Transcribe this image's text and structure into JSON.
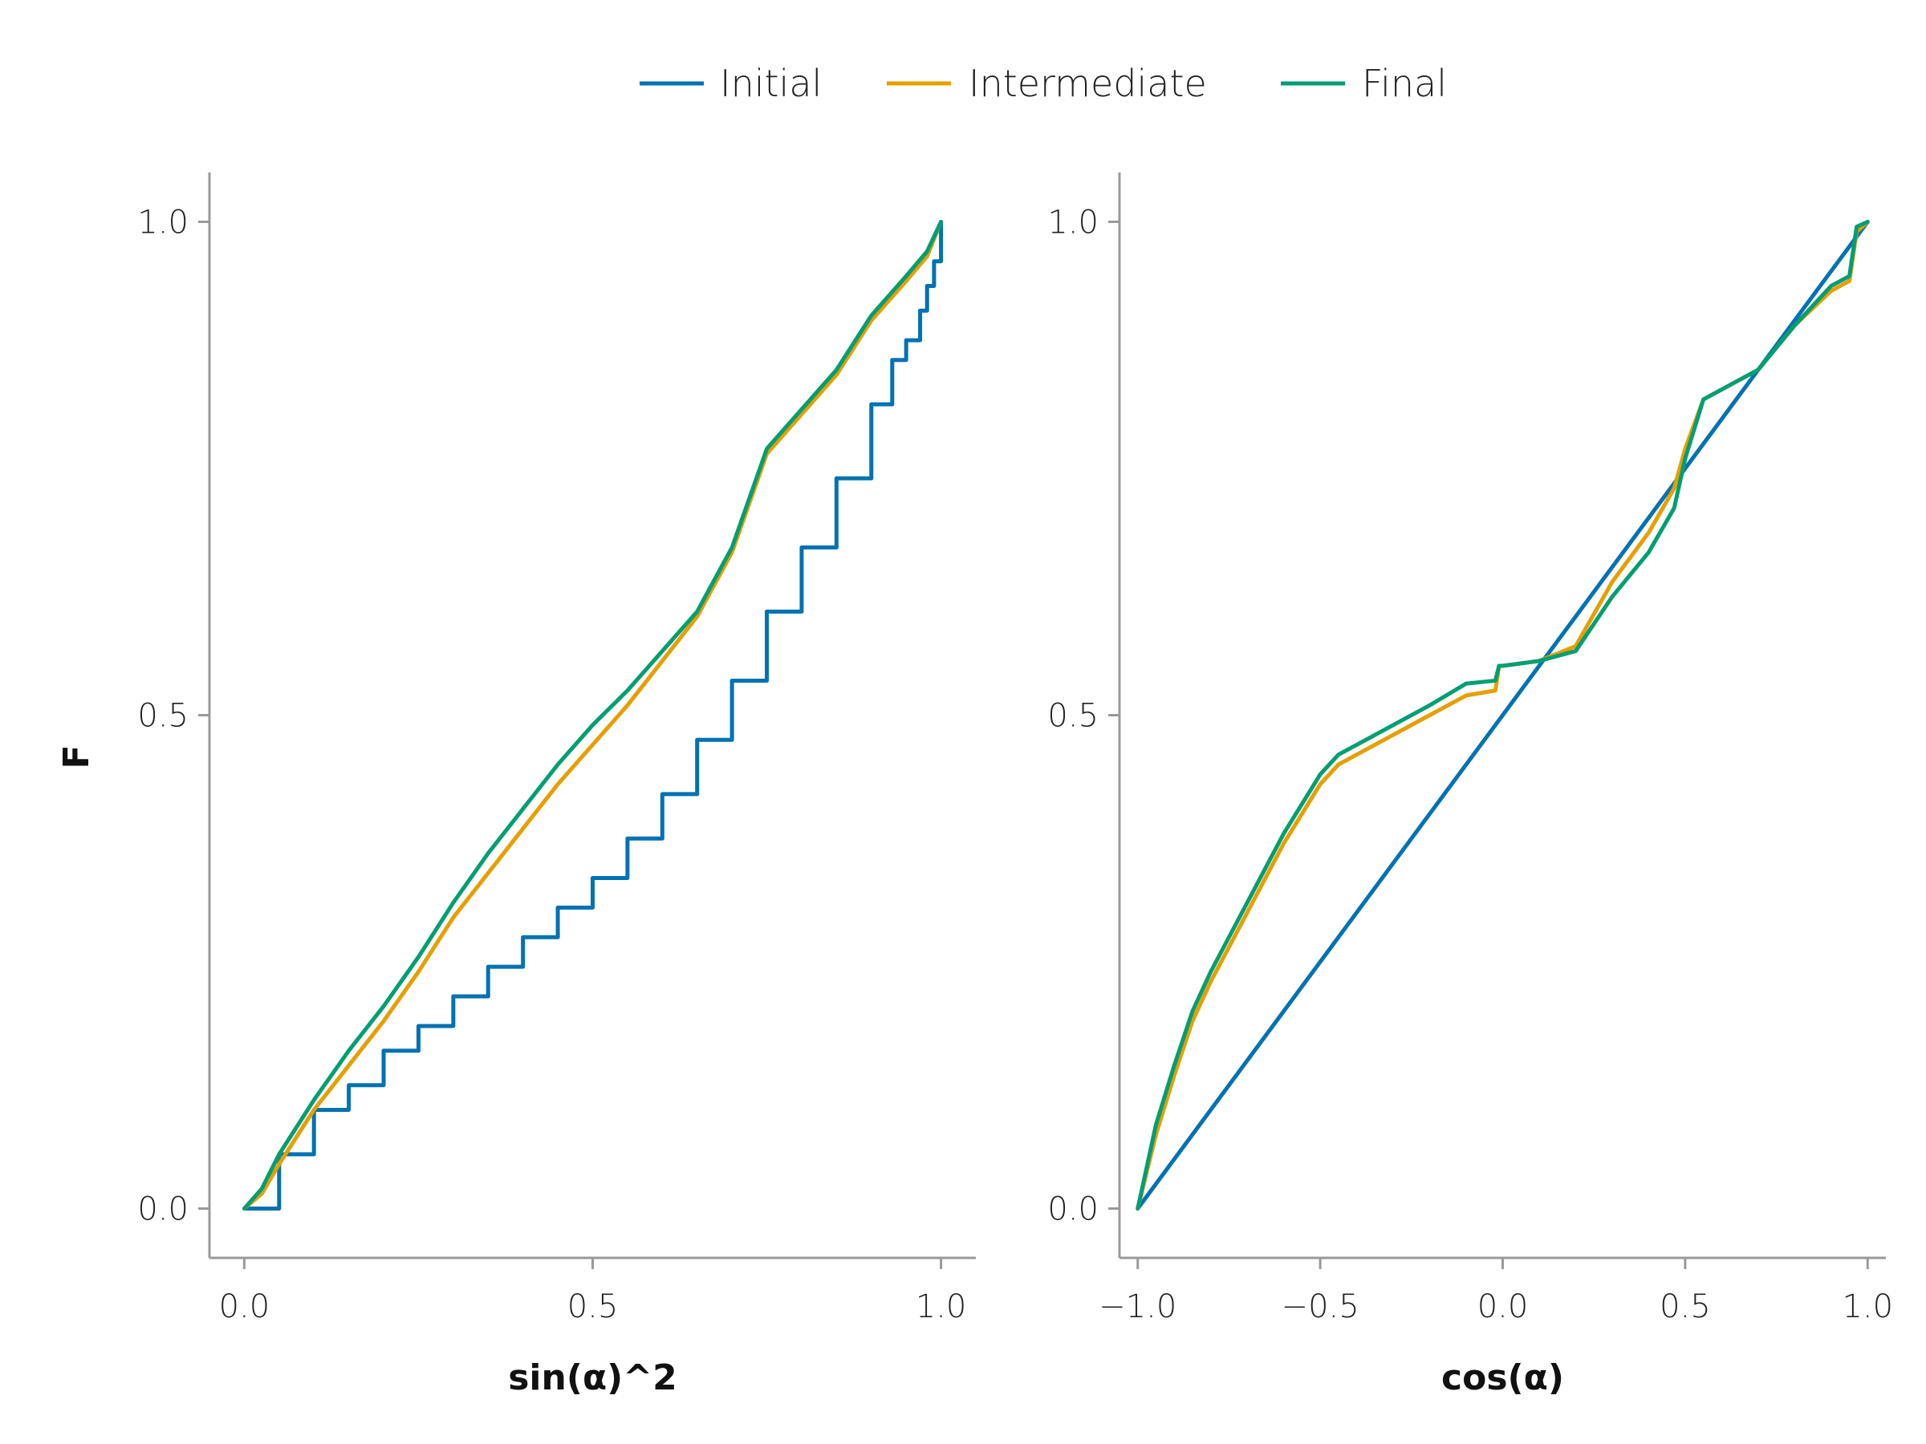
{
  "legend": {
    "items": [
      {
        "label": "Initial",
        "color": "#0072B2"
      },
      {
        "label": "Intermediate",
        "color": "#E69F00"
      },
      {
        "label": "Final",
        "color": "#009E73"
      }
    ]
  },
  "chart_data": [
    {
      "type": "line",
      "xlabel": "sin(α)^2",
      "ylabel": "F",
      "xlim": [
        -0.05,
        1.05
      ],
      "ylim": [
        -0.05,
        1.05
      ],
      "xticks": [
        {
          "value": 0.0,
          "label": "0.0"
        },
        {
          "value": 0.5,
          "label": "0.5"
        },
        {
          "value": 1.0,
          "label": "1.0"
        }
      ],
      "yticks": [
        {
          "value": 0.0,
          "label": "0.0"
        },
        {
          "value": 0.5,
          "label": "0.5"
        },
        {
          "value": 1.0,
          "label": "1.0"
        }
      ],
      "grid": false,
      "series": [
        {
          "name": "Initial",
          "color": "#0072B2",
          "step": true,
          "x": [
            0.0,
            0.05,
            0.1,
            0.15,
            0.2,
            0.25,
            0.3,
            0.35,
            0.4,
            0.45,
            0.5,
            0.55,
            0.6,
            0.65,
            0.7,
            0.75,
            0.8,
            0.85,
            0.9,
            0.93,
            0.95,
            0.97,
            0.98,
            0.99,
            1.0
          ],
          "y": [
            0.0,
            0.055,
            0.1,
            0.125,
            0.16,
            0.185,
            0.215,
            0.245,
            0.275,
            0.305,
            0.335,
            0.375,
            0.42,
            0.475,
            0.535,
            0.605,
            0.67,
            0.74,
            0.815,
            0.86,
            0.88,
            0.91,
            0.935,
            0.96,
            1.0
          ]
        },
        {
          "name": "Intermediate",
          "color": "#E69F00",
          "x": [
            0.0,
            0.025,
            0.05,
            0.1,
            0.15,
            0.2,
            0.25,
            0.3,
            0.35,
            0.4,
            0.45,
            0.5,
            0.55,
            0.6,
            0.65,
            0.7,
            0.75,
            0.8,
            0.85,
            0.9,
            0.95,
            0.98,
            1.0
          ],
          "y": [
            0.0,
            0.015,
            0.045,
            0.1,
            0.145,
            0.19,
            0.24,
            0.295,
            0.34,
            0.385,
            0.43,
            0.47,
            0.51,
            0.555,
            0.6,
            0.665,
            0.765,
            0.805,
            0.845,
            0.9,
            0.94,
            0.965,
            1.0
          ]
        },
        {
          "name": "Final",
          "color": "#009E73",
          "x": [
            0.0,
            0.025,
            0.05,
            0.1,
            0.15,
            0.2,
            0.25,
            0.3,
            0.35,
            0.4,
            0.45,
            0.5,
            0.55,
            0.6,
            0.65,
            0.7,
            0.75,
            0.8,
            0.85,
            0.9,
            0.95,
            0.98,
            1.0
          ],
          "y": [
            0.0,
            0.02,
            0.055,
            0.11,
            0.16,
            0.205,
            0.255,
            0.31,
            0.36,
            0.405,
            0.45,
            0.49,
            0.525,
            0.565,
            0.605,
            0.67,
            0.77,
            0.81,
            0.85,
            0.905,
            0.945,
            0.97,
            1.0
          ]
        }
      ]
    },
    {
      "type": "line",
      "xlabel": "cos(α)",
      "ylabel": "",
      "xlim": [
        -1.05,
        1.05
      ],
      "ylim": [
        -0.05,
        1.05
      ],
      "xticks": [
        {
          "value": -1.0,
          "label": "−1.0"
        },
        {
          "value": -0.5,
          "label": "−0.5"
        },
        {
          "value": 0.0,
          "label": "0.0"
        },
        {
          "value": 0.5,
          "label": "0.5"
        },
        {
          "value": 1.0,
          "label": "1.0"
        }
      ],
      "yticks": [
        {
          "value": 0.0,
          "label": "0.0"
        },
        {
          "value": 0.5,
          "label": "0.5"
        },
        {
          "value": 1.0,
          "label": "1.0"
        }
      ],
      "grid": false,
      "series": [
        {
          "name": "Initial",
          "color": "#0072B2",
          "x": [
            -1.0,
            1.0
          ],
          "y": [
            0.0,
            1.0
          ]
        },
        {
          "name": "Intermediate",
          "color": "#E69F00",
          "x": [
            -1.0,
            -0.95,
            -0.9,
            -0.85,
            -0.8,
            -0.7,
            -0.6,
            -0.5,
            -0.45,
            -0.4,
            -0.3,
            -0.2,
            -0.1,
            -0.02,
            -0.01,
            0.0,
            0.1,
            0.2,
            0.3,
            0.4,
            0.47,
            0.5,
            0.55,
            0.6,
            0.7,
            0.8,
            0.9,
            0.95,
            0.97,
            1.0
          ],
          "y": [
            0.0,
            0.075,
            0.135,
            0.19,
            0.23,
            0.3,
            0.37,
            0.43,
            0.45,
            0.46,
            0.48,
            0.5,
            0.52,
            0.525,
            0.55,
            0.55,
            0.555,
            0.57,
            0.635,
            0.685,
            0.73,
            0.77,
            0.82,
            0.83,
            0.85,
            0.895,
            0.93,
            0.94,
            0.99,
            1.0
          ]
        },
        {
          "name": "Final",
          "color": "#009E73",
          "x": [
            -1.0,
            -0.95,
            -0.9,
            -0.85,
            -0.8,
            -0.7,
            -0.6,
            -0.5,
            -0.45,
            -0.4,
            -0.3,
            -0.2,
            -0.1,
            -0.02,
            -0.01,
            0.0,
            0.1,
            0.2,
            0.3,
            0.4,
            0.47,
            0.5,
            0.55,
            0.6,
            0.7,
            0.8,
            0.9,
            0.95,
            0.97,
            1.0
          ],
          "y": [
            0.0,
            0.085,
            0.145,
            0.2,
            0.24,
            0.31,
            0.38,
            0.44,
            0.46,
            0.47,
            0.49,
            0.51,
            0.532,
            0.535,
            0.55,
            0.55,
            0.555,
            0.565,
            0.62,
            0.665,
            0.71,
            0.76,
            0.82,
            0.83,
            0.85,
            0.895,
            0.935,
            0.945,
            0.995,
            1.0
          ]
        }
      ]
    }
  ]
}
